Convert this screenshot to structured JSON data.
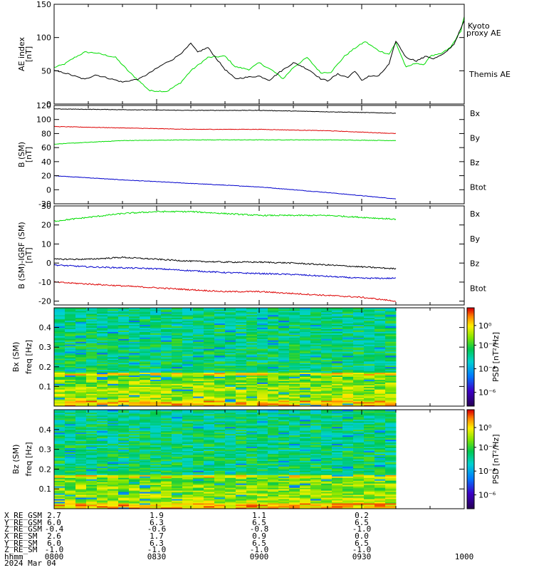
{
  "chart_data": [
    {
      "type": "line",
      "panel": "ae",
      "ylabel": "AE index",
      "yunit": "[nT]",
      "ylim": [
        0,
        150
      ],
      "yticks": [
        0,
        50,
        100,
        150
      ],
      "x_minutes_from_0800": [
        0,
        120
      ],
      "series": [
        {
          "name": "Kyoto proxy AE",
          "color": "#00dd00",
          "x": [
            0,
            3,
            6,
            9,
            12,
            18,
            22,
            28,
            33,
            37,
            40,
            45,
            50,
            53,
            57,
            60,
            64,
            67,
            70,
            74,
            78,
            81,
            85,
            88,
            91,
            95,
            98,
            100,
            103,
            106,
            108,
            110,
            113,
            116,
            119,
            120
          ],
          "y": [
            55,
            60,
            70,
            78,
            77,
            70,
            48,
            20,
            19,
            32,
            50,
            70,
            72,
            56,
            52,
            62,
            50,
            38,
            55,
            70,
            47,
            48,
            72,
            84,
            94,
            80,
            75,
            92,
            55,
            62,
            58,
            72,
            75,
            85,
            110,
            132
          ]
        },
        {
          "name": "Themis AE",
          "color": "#000000",
          "x": [
            0,
            3,
            6,
            9,
            12,
            15,
            18,
            20,
            22,
            25,
            28,
            32,
            35,
            38,
            40,
            42,
            45,
            48,
            50,
            53,
            56,
            60,
            63,
            66,
            70,
            72,
            75,
            78,
            80,
            83,
            86,
            88,
            90,
            92,
            95,
            98,
            100,
            103,
            106,
            109,
            111,
            114,
            117,
            120
          ],
          "y": [
            50,
            47,
            42,
            37,
            44,
            40,
            36,
            33,
            35,
            38,
            47,
            60,
            68,
            80,
            91,
            78,
            85,
            65,
            52,
            38,
            40,
            42,
            36,
            48,
            62,
            58,
            50,
            38,
            35,
            45,
            40,
            50,
            35,
            42,
            42,
            60,
            95,
            70,
            65,
            72,
            68,
            75,
            90,
            125
          ]
        }
      ]
    },
    {
      "type": "line",
      "panel": "b_sm",
      "ylabel": "B (SM)",
      "yunit": "[nT]",
      "ylim": [
        -20,
        120
      ],
      "yticks": [
        -20,
        0,
        20,
        40,
        60,
        80,
        100,
        120
      ],
      "x_minutes_from_0800": [
        0,
        120
      ],
      "series": [
        {
          "name": "Bx",
          "color": "#0000cc",
          "x": [
            0,
            20,
            40,
            60,
            80,
            100
          ],
          "y": [
            20,
            14,
            9,
            4,
            -4,
            -13
          ]
        },
        {
          "name": "By",
          "color": "#00dd00",
          "x": [
            0,
            20,
            40,
            60,
            80,
            100
          ],
          "y": [
            65,
            70,
            71,
            71,
            71,
            70
          ]
        },
        {
          "name": "Bz",
          "color": "#dd0000",
          "x": [
            0,
            20,
            40,
            60,
            80,
            100
          ],
          "y": [
            90,
            88,
            86,
            86,
            84,
            80
          ]
        },
        {
          "name": "Btot",
          "color": "#000000",
          "x": [
            0,
            20,
            40,
            60,
            80,
            100
          ],
          "y": [
            115,
            114,
            113,
            113,
            111,
            109
          ]
        }
      ]
    },
    {
      "type": "line",
      "panel": "b_sm_igrf",
      "ylabel": "B (SM)-IGRF (SM)",
      "yunit": "[nT]",
      "ylim": [
        -22,
        30
      ],
      "yticks": [
        -20,
        -10,
        0,
        10,
        20,
        30
      ],
      "x_minutes_from_0800": [
        0,
        120
      ],
      "series": [
        {
          "name": "Bx",
          "color": "#0000cc",
          "x": [
            0,
            10,
            20,
            30,
            40,
            50,
            60,
            70,
            80,
            90,
            100
          ],
          "y": [
            -1,
            -2,
            -2.5,
            -3,
            -4,
            -5,
            -5.5,
            -6,
            -7,
            -8,
            -8
          ]
        },
        {
          "name": "By",
          "color": "#00dd00",
          "x": [
            0,
            10,
            20,
            30,
            40,
            50,
            60,
            70,
            80,
            90,
            100
          ],
          "y": [
            22,
            24,
            26,
            27,
            27,
            26,
            25,
            25,
            25,
            24,
            23
          ]
        },
        {
          "name": "Bz",
          "color": "#dd0000",
          "x": [
            0,
            10,
            20,
            30,
            40,
            50,
            60,
            70,
            80,
            90,
            100
          ],
          "y": [
            -10,
            -11,
            -12,
            -13,
            -14,
            -15,
            -15,
            -16,
            -17,
            -18,
            -20
          ]
        },
        {
          "name": "Btot",
          "color": "#000000",
          "x": [
            0,
            10,
            20,
            30,
            40,
            50,
            60,
            70,
            80,
            90,
            100
          ],
          "y": [
            2,
            2,
            3,
            2,
            1,
            0.5,
            0.5,
            0,
            -1,
            -2,
            -3
          ]
        }
      ]
    },
    {
      "type": "heatmap",
      "panel": "bx_spec",
      "ylabel": "Bx (SM)",
      "ylabel2": "freq",
      "yunit": "[Hz]",
      "ylim": [
        0,
        0.5
      ],
      "yticks": [
        0.1,
        0.2,
        0.3,
        0.4
      ],
      "data_end_minutes": 100,
      "colorbar_label": "PSD [nT²/Hz]",
      "colorbar_ticks": [
        "10⁰",
        "10⁻²",
        "10⁻⁴",
        "10⁻⁶"
      ]
    },
    {
      "type": "heatmap",
      "panel": "bz_spec",
      "ylabel": "Bz (SM)",
      "ylabel2": "freq",
      "yunit": "[Hz]",
      "ylim": [
        0,
        0.5
      ],
      "yticks": [
        0.1,
        0.2,
        0.3,
        0.4
      ],
      "data_end_minutes": 100,
      "colorbar_label": "PSD [nT²/Hz]",
      "colorbar_ticks": [
        "10⁰",
        "10⁻²",
        "10⁻⁴",
        "10⁻⁶"
      ]
    }
  ],
  "ephemeris": {
    "labels": [
      "X_RE_GSM",
      "Y_RE_GSM",
      "Z_RE_GSM",
      "X_RE_SM",
      "Y_RE_SM",
      "Z_RE_SM",
      "hhmm",
      "2024 Mar 04"
    ],
    "columns": [
      {
        "values": [
          "2.7",
          "6.0",
          "-0.4",
          "2.6",
          "6.0",
          "-1.0",
          "0800"
        ]
      },
      {
        "values": [
          "1.9",
          "6.3",
          "-0.6",
          "1.7",
          "6.3",
          "-1.0",
          "0830"
        ]
      },
      {
        "values": [
          "1.1",
          "6.5",
          "-0.8",
          "0.9",
          "6.5",
          "-1.0",
          "0900"
        ]
      },
      {
        "values": [
          "0.2",
          "6.5",
          "-1.0",
          "0.0",
          "6.5",
          "-1.0",
          "0930"
        ]
      },
      {
        "values": [
          "",
          "",
          "",
          "",
          "",
          "",
          "1000"
        ]
      }
    ]
  }
}
